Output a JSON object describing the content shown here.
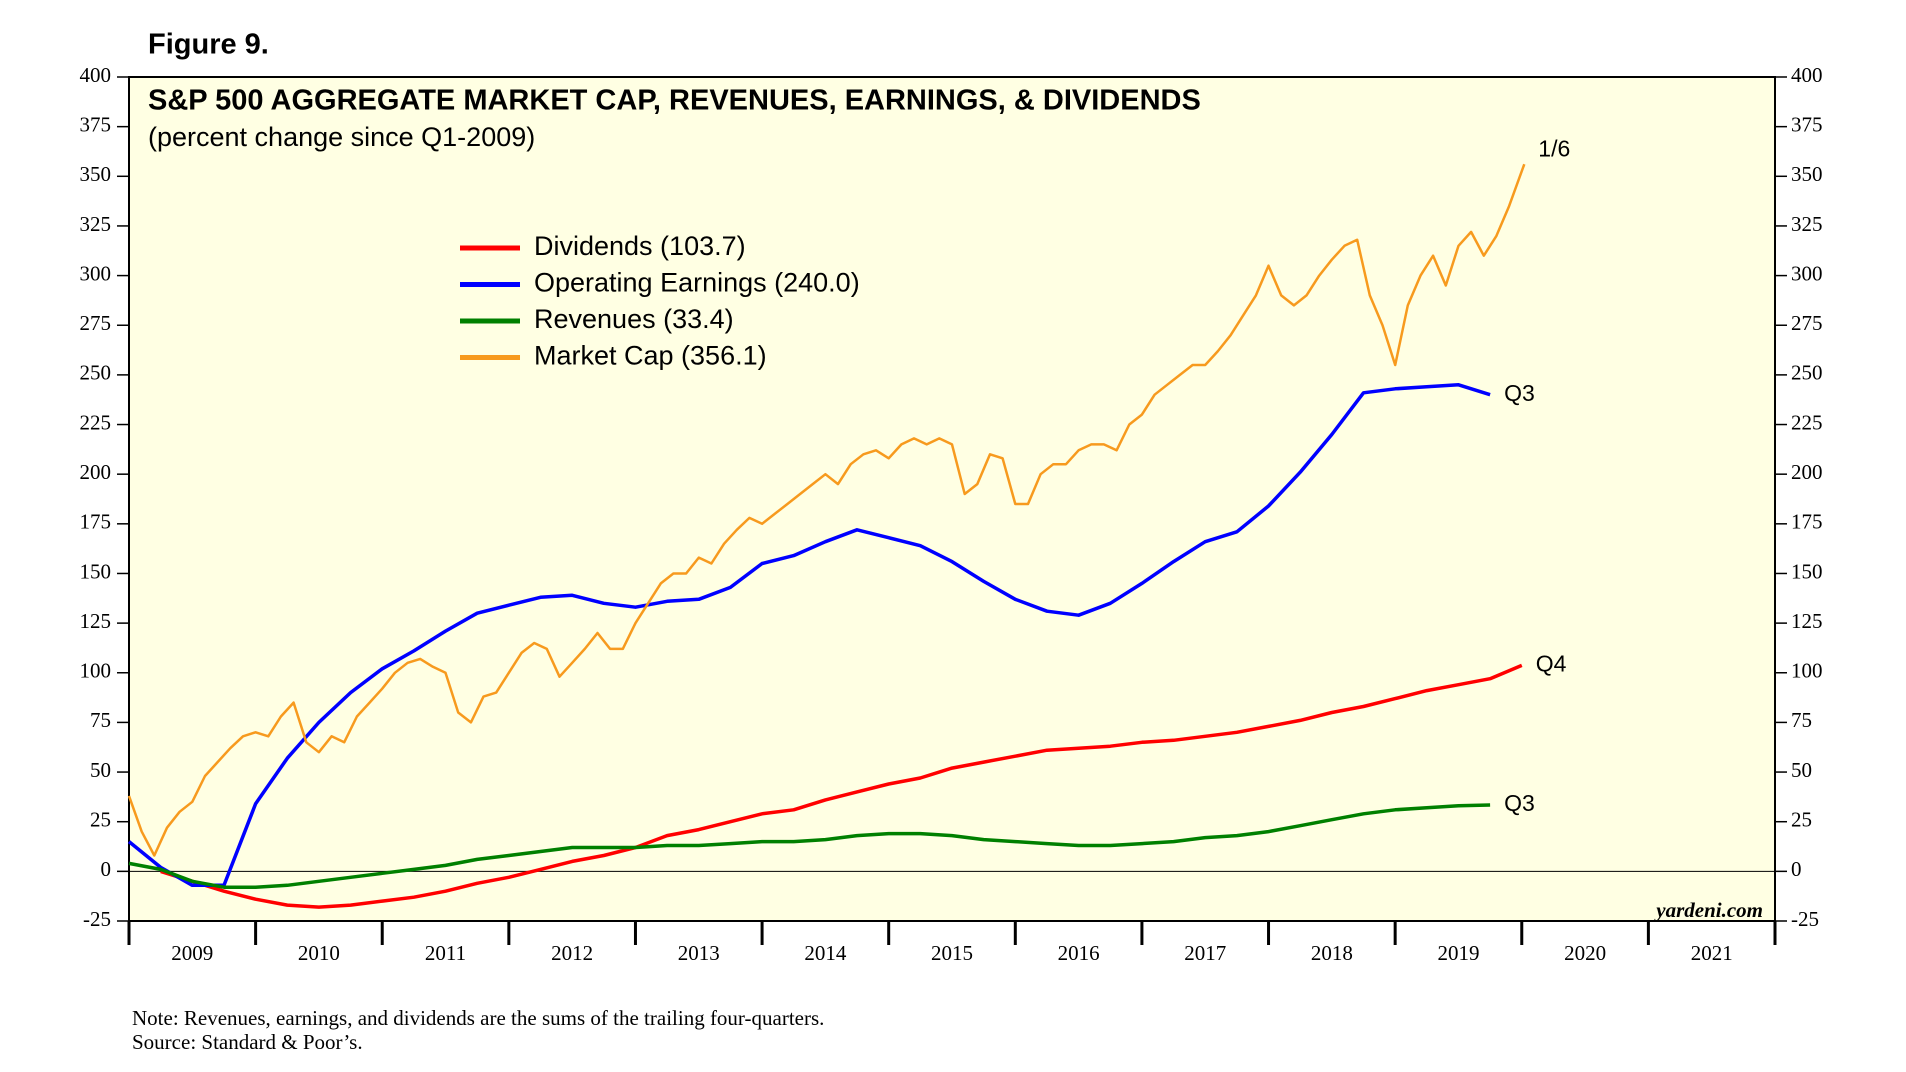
{
  "chart_data": {
    "type": "line",
    "figure_label": "Figure 9.",
    "title": "S&P 500 AGGREGATE MARKET CAP, REVENUES, EARNINGS, & DIVIDENDS",
    "subtitle": "(percent change since Q1-2009)",
    "watermark": "yardeni.com",
    "notes": [
      "Note: Revenues, earnings, and dividends are the sums of the trailing four-quarters.",
      "Source: Standard & Poor’s."
    ],
    "xlim": [
      2009,
      2022
    ],
    "xticks": [
      2009,
      2010,
      2011,
      2012,
      2013,
      2014,
      2015,
      2016,
      2017,
      2018,
      2019,
      2020,
      2021,
      2022
    ],
    "year_labels": [
      "2009",
      "2010",
      "2011",
      "2012",
      "2013",
      "2014",
      "2015",
      "2016",
      "2017",
      "2018",
      "2019",
      "2020",
      "2021"
    ],
    "ylim": [
      -25,
      400
    ],
    "yticks": [
      -25,
      0,
      25,
      50,
      75,
      100,
      125,
      150,
      175,
      200,
      225,
      250,
      275,
      300,
      325,
      350,
      375,
      400
    ],
    "right_axis": true,
    "zero_line": true,
    "background": "#ffffe3",
    "series": [
      {
        "name": "Dividends (103.7)",
        "color": "#ff0000",
        "end_label": "Q4",
        "x": [
          2009.25,
          2009.5,
          2009.75,
          2010,
          2010.25,
          2010.5,
          2010.75,
          2011,
          2011.25,
          2011.5,
          2011.75,
          2012,
          2012.25,
          2012.5,
          2012.75,
          2013,
          2013.25,
          2013.5,
          2013.75,
          2014,
          2014.25,
          2014.5,
          2014.75,
          2015,
          2015.25,
          2015.5,
          2015.75,
          2016,
          2016.25,
          2016.5,
          2016.75,
          2017,
          2017.25,
          2017.5,
          2017.75,
          2018,
          2018.25,
          2018.5,
          2018.75,
          2019,
          2019.25,
          2019.5,
          2019.75,
          2020
        ],
        "values": [
          0,
          -5,
          -10,
          -14,
          -17,
          -18,
          -17,
          -15,
          -13,
          -10,
          -6,
          -3,
          1,
          5,
          8,
          12,
          18,
          21,
          25,
          29,
          31,
          36,
          40,
          44,
          47,
          52,
          55,
          58,
          61,
          62,
          63,
          65,
          66,
          68,
          70,
          73,
          76,
          80,
          83,
          87,
          91,
          94,
          97,
          103.7
        ]
      },
      {
        "name": "Operating Earnings (240.0)",
        "color": "#0000ff",
        "end_label": "Q3",
        "x": [
          2009,
          2009.25,
          2009.5,
          2009.75,
          2010,
          2010.25,
          2010.5,
          2010.75,
          2011,
          2011.25,
          2011.5,
          2011.75,
          2012,
          2012.25,
          2012.5,
          2012.75,
          2013,
          2013.25,
          2013.5,
          2013.75,
          2014,
          2014.25,
          2014.5,
          2014.75,
          2015,
          2015.25,
          2015.5,
          2015.75,
          2016,
          2016.25,
          2016.5,
          2016.75,
          2017,
          2017.25,
          2017.5,
          2017.75,
          2018,
          2018.25,
          2018.5,
          2018.75,
          2019,
          2019.25,
          2019.5,
          2019.75
        ],
        "values": [
          15,
          2,
          -7,
          -7,
          34,
          57,
          75,
          90,
          102,
          111,
          121,
          130,
          134,
          138,
          139,
          135,
          133,
          136,
          137,
          143,
          155,
          159,
          166,
          172,
          168,
          164,
          156,
          146,
          137,
          131,
          129,
          135,
          145,
          156,
          166,
          171,
          184,
          201,
          220,
          241,
          243,
          244,
          245,
          240.0
        ]
      },
      {
        "name": "Revenues (33.4)",
        "color": "#008000",
        "end_label": "Q3",
        "x": [
          2009,
          2009.25,
          2009.5,
          2009.75,
          2010,
          2010.25,
          2010.5,
          2010.75,
          2011,
          2011.25,
          2011.5,
          2011.75,
          2012,
          2012.25,
          2012.5,
          2012.75,
          2013,
          2013.25,
          2013.5,
          2013.75,
          2014,
          2014.25,
          2014.5,
          2014.75,
          2015,
          2015.25,
          2015.5,
          2015.75,
          2016,
          2016.25,
          2016.5,
          2016.75,
          2017,
          2017.25,
          2017.5,
          2017.75,
          2018,
          2018.25,
          2018.5,
          2018.75,
          2019,
          2019.25,
          2019.5,
          2019.75
        ],
        "values": [
          4,
          1,
          -5,
          -8,
          -8,
          -7,
          -5,
          -3,
          -1,
          1,
          3,
          6,
          8,
          10,
          12,
          12,
          12,
          13,
          13,
          14,
          15,
          15,
          16,
          18,
          19,
          19,
          18,
          16,
          15,
          14,
          13,
          13,
          14,
          15,
          17,
          18,
          20,
          23,
          26,
          29,
          31,
          32,
          33,
          33.4
        ]
      },
      {
        "name": "Market Cap (356.1)",
        "color": "#f79a1e",
        "end_label": "1/6",
        "x": [
          2009,
          2009.1,
          2009.2,
          2009.3,
          2009.4,
          2009.5,
          2009.6,
          2009.7,
          2009.8,
          2009.9,
          2010,
          2010.1,
          2010.2,
          2010.3,
          2010.4,
          2010.5,
          2010.6,
          2010.7,
          2010.8,
          2010.9,
          2011,
          2011.1,
          2011.2,
          2011.3,
          2011.4,
          2011.5,
          2011.6,
          2011.7,
          2011.8,
          2011.9,
          2012,
          2012.1,
          2012.2,
          2012.3,
          2012.4,
          2012.5,
          2012.6,
          2012.7,
          2012.8,
          2012.9,
          2013,
          2013.1,
          2013.2,
          2013.3,
          2013.4,
          2013.5,
          2013.6,
          2013.7,
          2013.8,
          2013.9,
          2014,
          2014.1,
          2014.2,
          2014.3,
          2014.4,
          2014.5,
          2014.6,
          2014.7,
          2014.8,
          2014.9,
          2015,
          2015.1,
          2015.2,
          2015.3,
          2015.4,
          2015.5,
          2015.6,
          2015.7,
          2015.8,
          2015.9,
          2016,
          2016.1,
          2016.2,
          2016.3,
          2016.4,
          2016.5,
          2016.6,
          2016.7,
          2016.8,
          2016.9,
          2017,
          2017.1,
          2017.2,
          2017.3,
          2017.4,
          2017.5,
          2017.6,
          2017.7,
          2017.8,
          2017.9,
          2018,
          2018.1,
          2018.2,
          2018.3,
          2018.4,
          2018.5,
          2018.6,
          2018.7,
          2018.8,
          2018.9,
          2019,
          2019.1,
          2019.2,
          2019.3,
          2019.4,
          2019.5,
          2019.6,
          2019.7,
          2019.8,
          2019.9,
          2020.02
        ],
        "values": [
          38,
          20,
          8,
          22,
          30,
          35,
          48,
          55,
          62,
          68,
          70,
          68,
          78,
          85,
          65,
          60,
          68,
          65,
          78,
          85,
          92,
          100,
          105,
          107,
          103,
          100,
          80,
          75,
          88,
          90,
          100,
          110,
          115,
          112,
          98,
          105,
          112,
          120,
          112,
          112,
          125,
          135,
          145,
          150,
          150,
          158,
          155,
          165,
          172,
          178,
          175,
          180,
          185,
          190,
          195,
          200,
          195,
          205,
          210,
          212,
          208,
          215,
          218,
          215,
          218,
          215,
          190,
          195,
          210,
          208,
          185,
          185,
          200,
          205,
          205,
          212,
          215,
          215,
          212,
          225,
          230,
          240,
          245,
          250,
          255,
          255,
          262,
          270,
          280,
          290,
          305,
          290,
          285,
          290,
          300,
          308,
          315,
          318,
          290,
          275,
          255,
          285,
          300,
          310,
          295,
          315,
          322,
          310,
          320,
          335,
          356.1
        ]
      }
    ]
  }
}
